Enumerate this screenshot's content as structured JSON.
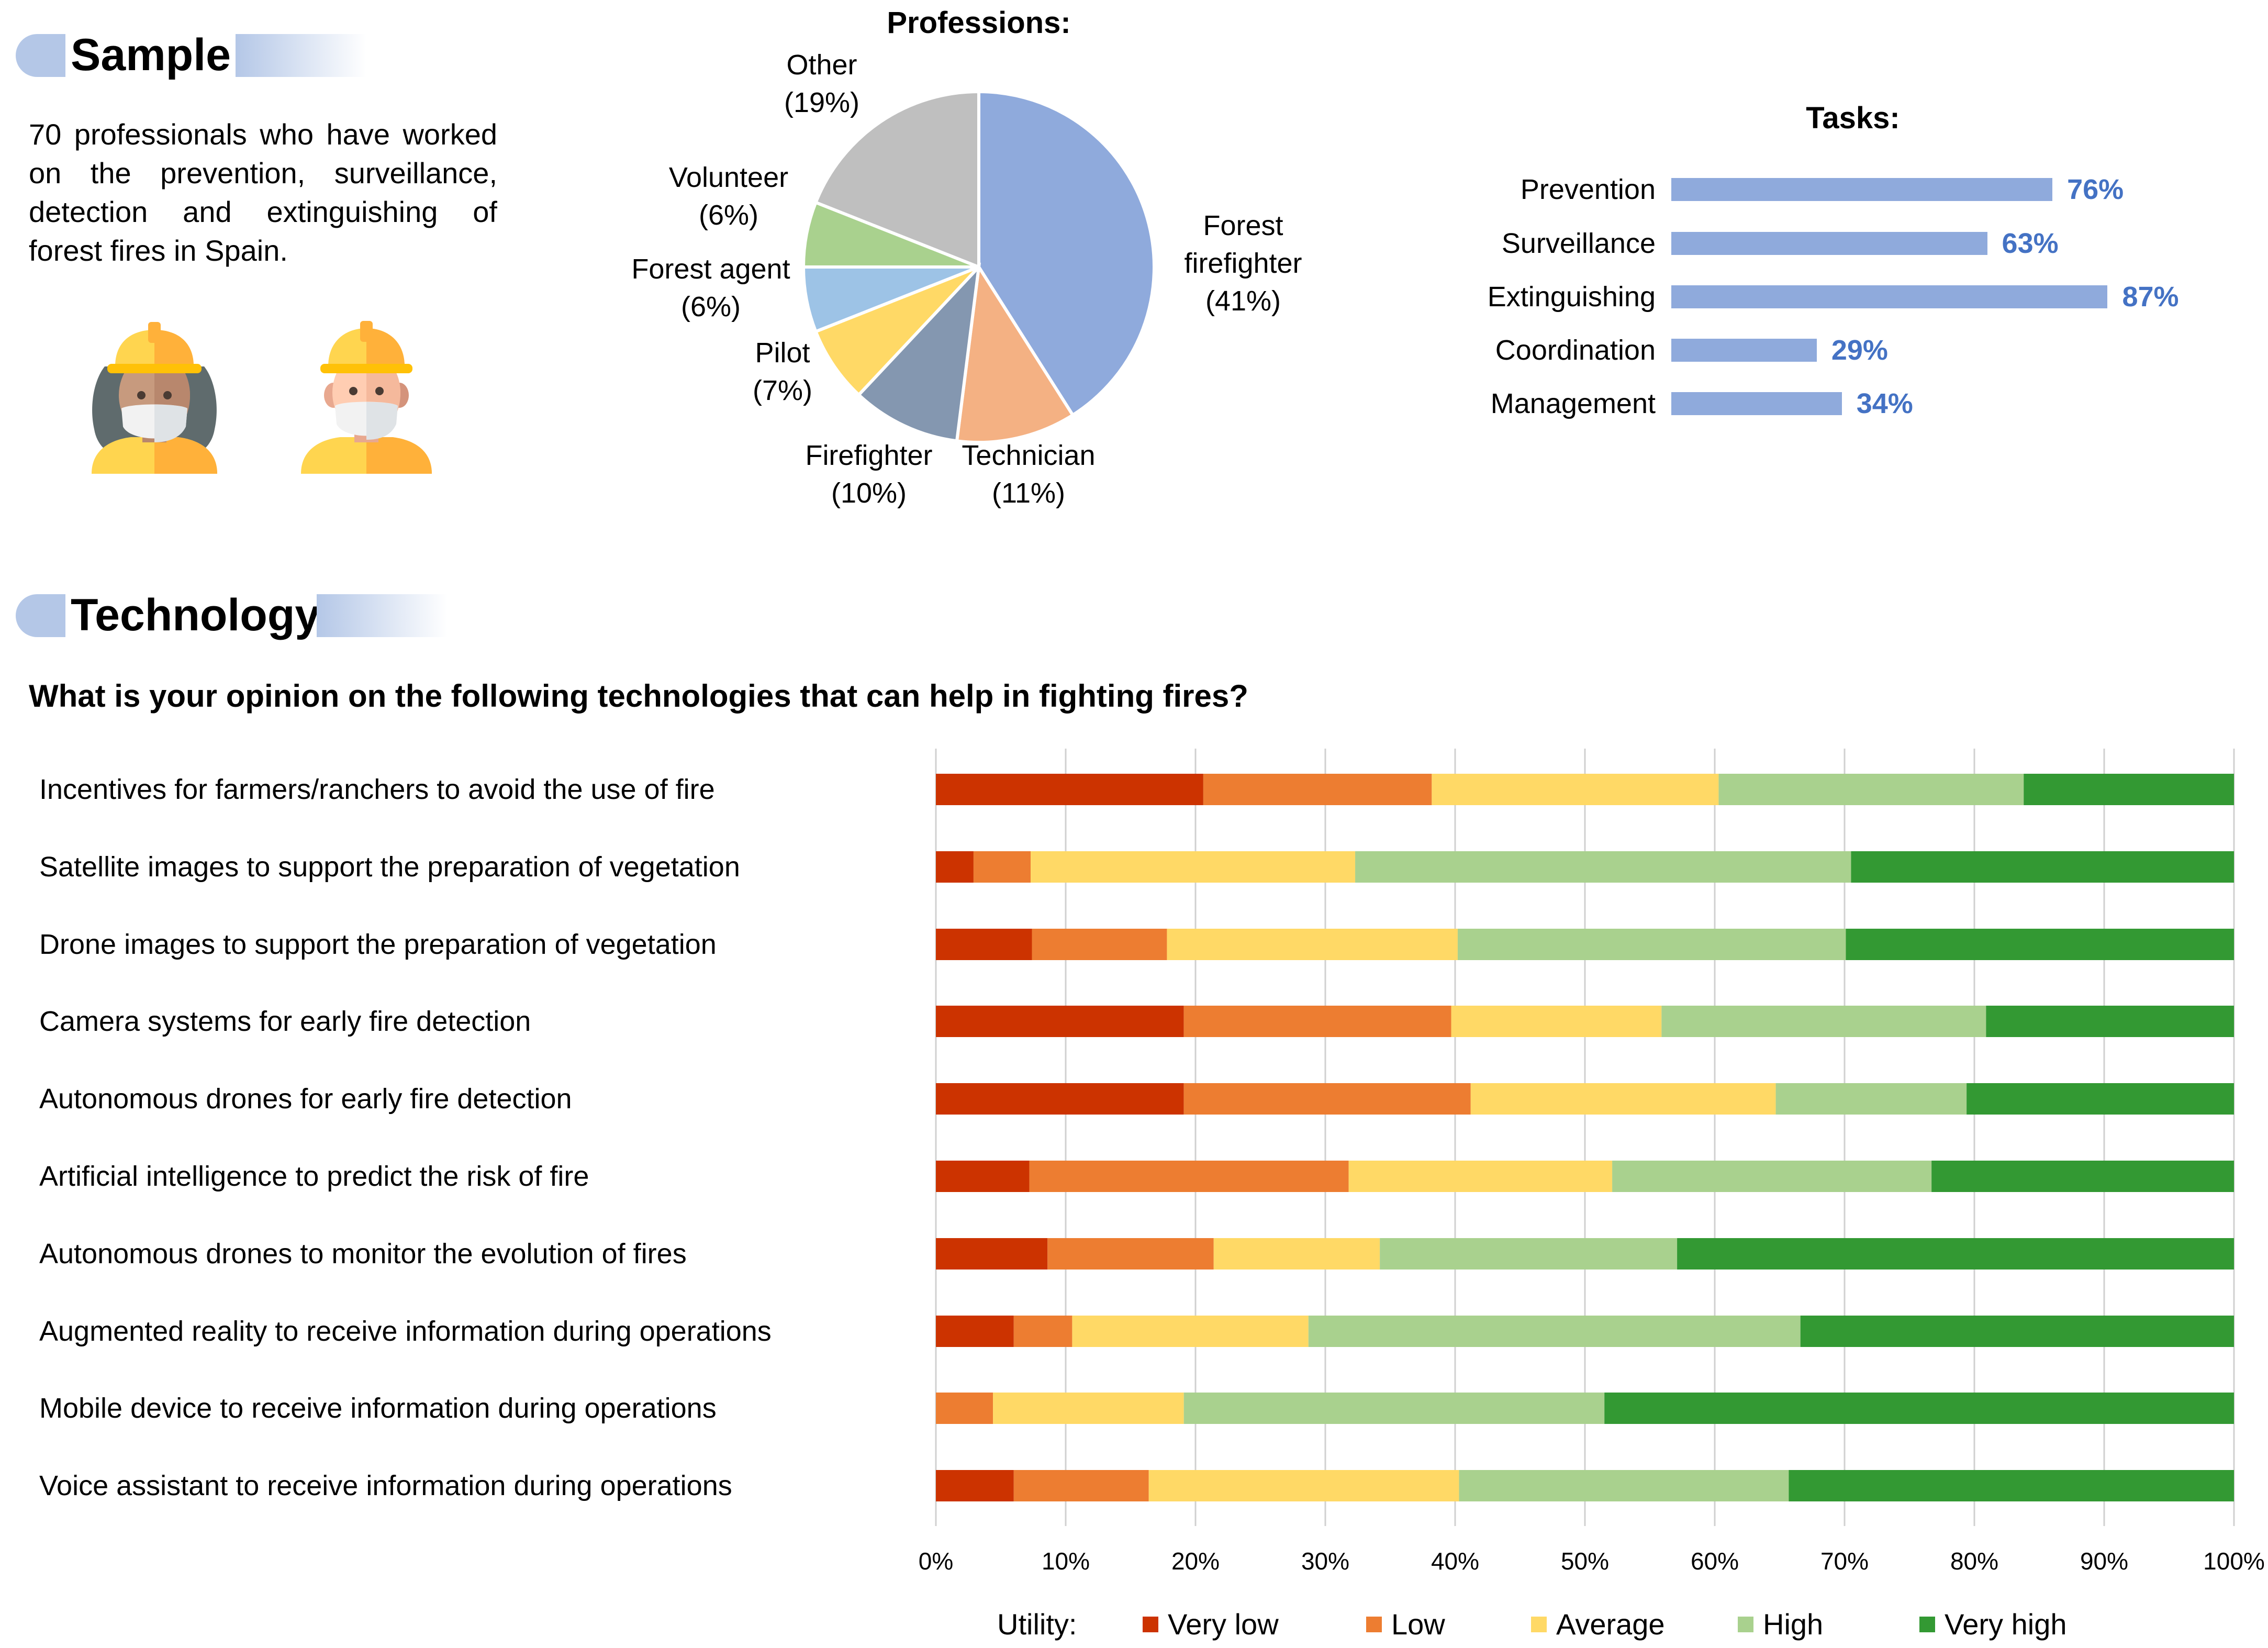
{
  "sample": {
    "title": "Sample",
    "description": "70 professionals who have worked on the prevention, surveillance, detection and extinguishing of forest fires in Spain."
  },
  "professions": {
    "title": "Professions:",
    "slices": [
      {
        "name": "Forest firefighter",
        "line1": "Forest",
        "line2": "firefighter",
        "pct_label": "(41%)",
        "value": 41,
        "color": "#8faadc"
      },
      {
        "name": "Technician",
        "line1": "Technician",
        "pct_label": "(11%)",
        "value": 11,
        "color": "#f4b183"
      },
      {
        "name": "Firefighter",
        "line1": "Firefighter",
        "pct_label": "(10%)",
        "value": 10,
        "color": "#8497b0"
      },
      {
        "name": "Pilot",
        "line1": "Pilot",
        "pct_label": "(7%)",
        "value": 7,
        "color": "#ffd966"
      },
      {
        "name": "Forest agent",
        "line1": "Forest agent",
        "pct_label": "(6%)",
        "value": 6,
        "color": "#9dc3e6"
      },
      {
        "name": "Volunteer",
        "line1": "Volunteer",
        "pct_label": "(6%)",
        "value": 6,
        "color": "#a9d18e"
      },
      {
        "name": "Other",
        "line1": "Other",
        "pct_label": "(19%)",
        "value": 19,
        "color": "#bfbfbf"
      }
    ]
  },
  "tasks": {
    "title": "Tasks:",
    "items": [
      {
        "label": "Prevention",
        "value": 76,
        "value_label": "76%"
      },
      {
        "label": "Surveillance",
        "value": 63,
        "value_label": "63%"
      },
      {
        "label": "Extinguishing",
        "value": 87,
        "value_label": "87%"
      },
      {
        "label": "Coordination",
        "value": 29,
        "value_label": "29%"
      },
      {
        "label": "Management",
        "value": 34,
        "value_label": "34%"
      }
    ]
  },
  "technology": {
    "title": "Technology",
    "question": "What is your opinion on the following technologies that can help in fighting fires?",
    "legend_title": "Utility:"
  },
  "chart_data": {
    "type": "bar",
    "orientation": "horizontal",
    "stacked": true,
    "title": "What is your opinion on the following technologies that can help in fighting fires?",
    "xlim": [
      0,
      100
    ],
    "ticks": [
      "0%",
      "10%",
      "20%",
      "30%",
      "40%",
      "50%",
      "60%",
      "70%",
      "80%",
      "90%",
      "100%"
    ],
    "categories": [
      "Incentives for farmers/ranchers to avoid the use of fire",
      "Satellite images to support the preparation of vegetation",
      "Drone images to support the preparation of vegetation",
      "Camera systems for early fire detection",
      "Autonomous drones for early fire detection",
      "Artificial intelligence to predict the risk of fire",
      "Autonomous drones to monitor the evolution of fires",
      "Augmented reality to receive information during operations",
      "Mobile device to receive information during operations",
      "Voice assistant to receive information during operations"
    ],
    "series": [
      {
        "name": "Very low",
        "color": "#cc3300",
        "values": [
          20.6,
          2.9,
          7.4,
          19.1,
          19.1,
          7.2,
          8.6,
          6.0,
          0.0,
          6.0
        ]
      },
      {
        "name": "Low",
        "color": "#ed7d31",
        "values": [
          17.6,
          4.4,
          10.4,
          20.6,
          22.1,
          24.6,
          12.8,
          4.5,
          4.4,
          10.4
        ]
      },
      {
        "name": "Average",
        "color": "#ffd966",
        "values": [
          22.1,
          25.0,
          22.4,
          16.2,
          23.5,
          20.3,
          12.8,
          18.2,
          14.7,
          23.9
        ]
      },
      {
        "name": "High",
        "color": "#a9d18e",
        "values": [
          23.5,
          38.2,
          29.9,
          25.0,
          14.7,
          24.6,
          22.9,
          37.9,
          32.4,
          25.4
        ]
      },
      {
        "name": "Very high",
        "color": "#339933",
        "values": [
          16.2,
          29.5,
          29.9,
          19.1,
          20.6,
          23.3,
          42.9,
          33.4,
          48.5,
          34.3
        ]
      }
    ]
  }
}
